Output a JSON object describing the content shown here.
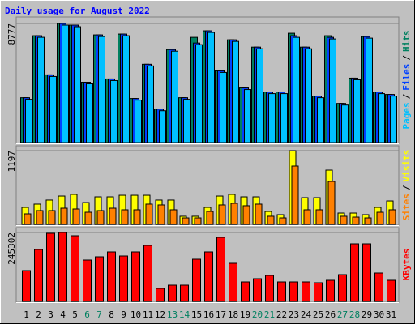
{
  "legend_separator": "/",
  "chart_data": [
    {
      "type": "bar",
      "title": "Daily usage for August 2022",
      "ylim": [
        0,
        8777
      ],
      "yticks": [
        8777
      ],
      "series": [
        {
          "name": "Hits",
          "color": "#008060",
          "values": [
            3306,
            7876,
            4990,
            8777,
            8657,
            4449,
            7936,
            4690,
            7996,
            3247,
            5772,
            2465,
            6854,
            3306,
            7755,
            8236,
            5290,
            7575,
            4028,
            7034,
            3727,
            3727,
            8056,
            7034,
            3427,
            7876,
            2886,
            4750,
            7816,
            3727,
            3547
          ]
        },
        {
          "name": "Files",
          "color": "#0040ff",
          "values": [
            3306,
            7876,
            4990,
            8777,
            8657,
            4449,
            7936,
            4690,
            7996,
            3247,
            5772,
            2465,
            6854,
            3306,
            7334,
            8236,
            5290,
            7575,
            4028,
            7034,
            3727,
            3727,
            7876,
            7034,
            3427,
            7756,
            2886,
            4750,
            7816,
            3727,
            3547
          ]
        },
        {
          "name": "Pages",
          "color": "#00c0ff",
          "values": [
            3186,
            7756,
            4870,
            8657,
            8537,
            4329,
            7816,
            4570,
            7876,
            3127,
            5652,
            2345,
            6734,
            3186,
            7214,
            8116,
            5170,
            7455,
            3908,
            6914,
            3607,
            3607,
            7756,
            6914,
            3307,
            7636,
            2766,
            4630,
            7696,
            3607,
            3427
          ]
        }
      ]
    },
    {
      "type": "bar",
      "ylim": [
        0,
        1197
      ],
      "yticks": [
        1197
      ],
      "series": [
        {
          "name": "Visits",
          "color": "#ffff00",
          "values": [
            276,
            329,
            395,
            460,
            487,
            355,
            447,
            447,
            473,
            473,
            473,
            395,
            395,
            132,
            132,
            276,
            460,
            487,
            447,
            447,
            210,
            158,
            1197,
            434,
            434,
            881,
            184,
            184,
            158,
            276,
            381
          ]
        },
        {
          "name": "Sites",
          "color": "#ff8000",
          "values": [
            171,
            224,
            224,
            263,
            250,
            197,
            224,
            263,
            237,
            237,
            329,
            316,
            237,
            105,
            105,
            210,
            316,
            342,
            303,
            329,
            132,
            105,
            947,
            237,
            237,
            697,
            132,
            118,
            105,
            197,
            237
          ]
        }
      ]
    },
    {
      "type": "bar",
      "ylim": [
        0,
        245302
      ],
      "yticks": [
        245302
      ],
      "categories": [
        "1",
        "2",
        "3",
        "4",
        "5",
        "6",
        "7",
        "8",
        "9",
        "10",
        "11",
        "12",
        "13",
        "14",
        "15",
        "16",
        "17",
        "18",
        "19",
        "20",
        "21",
        "22",
        "23",
        "24",
        "25",
        "26",
        "27",
        "28",
        "29",
        "30",
        "31"
      ],
      "category_colors": [
        "#000000",
        "#000000",
        "#000000",
        "#000000",
        "#000000",
        "#008060",
        "#008060",
        "#000000",
        "#000000",
        "#000000",
        "#000000",
        "#000000",
        "#008060",
        "#008060",
        "#000000",
        "#000000",
        "#000000",
        "#000000",
        "#000000",
        "#008060",
        "#008060",
        "#000000",
        "#000000",
        "#000000",
        "#000000",
        "#000000",
        "#008060",
        "#008060",
        "#000000",
        "#000000",
        "#000000"
      ],
      "series": [
        {
          "name": "KBytes",
          "color": "#ff0000",
          "values": [
            109668,
            184704,
            242424,
            245302,
            233766,
            147186,
            158730,
            176046,
            161616,
            176046,
            199134,
            46176,
            57720,
            57720,
            150072,
            176046,
            227994,
            135642,
            69264,
            80808,
            92352,
            69264,
            69264,
            69264,
            66378,
            75036,
            95238,
            204906,
            204906,
            101010,
            75036
          ]
        }
      ]
    }
  ]
}
